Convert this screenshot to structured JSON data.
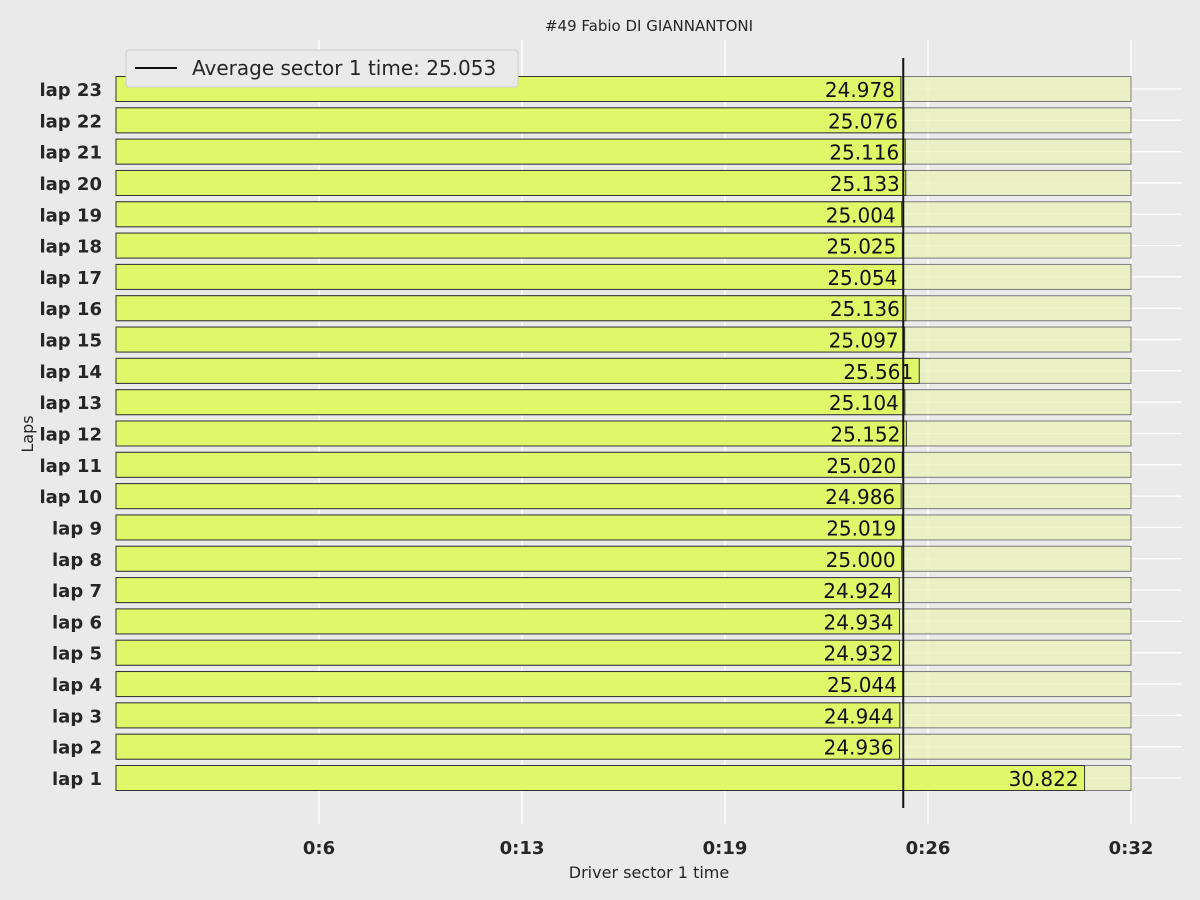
{
  "chart_data": {
    "type": "bar",
    "orientation": "horizontal",
    "title": "#49  Fabio DI GIANNANTONI",
    "xlabel": "Driver sector 1 time",
    "ylabel": "Laps",
    "xlim": [
      0,
      32.3
    ],
    "x_ticks": [
      {
        "value": 6.46,
        "label": "0:6"
      },
      {
        "value": 12.92,
        "label": "0:13"
      },
      {
        "value": 19.38,
        "label": "0:19"
      },
      {
        "value": 25.84,
        "label": "0:26"
      },
      {
        "value": 32.3,
        "label": "0:32"
      }
    ],
    "grid": true,
    "legend_position": "top-left",
    "colors": {
      "bar": "#e0f76a",
      "background_bar": "#eaf2b6",
      "edge": "#333333",
      "average_line": "#111111",
      "plot_bg": "#eaeaea",
      "grid": "#ffffff"
    },
    "background_bar_value": 32.3,
    "categories": [
      "lap 1",
      "lap 2",
      "lap 3",
      "lap 4",
      "lap 5",
      "lap 6",
      "lap 7",
      "lap 8",
      "lap 9",
      "lap 10",
      "lap 11",
      "lap 12",
      "lap 13",
      "lap 14",
      "lap 15",
      "lap 16",
      "lap 17",
      "lap 18",
      "lap 19",
      "lap 20",
      "lap 21",
      "lap 22",
      "lap 23"
    ],
    "values": [
      30.822,
      24.936,
      24.944,
      25.044,
      24.932,
      24.934,
      24.924,
      25.0,
      25.019,
      24.986,
      25.02,
      25.152,
      25.104,
      25.561,
      25.097,
      25.136,
      25.054,
      25.025,
      25.004,
      25.133,
      25.116,
      25.076,
      24.978
    ],
    "value_labels": [
      "30.822",
      "24.936",
      "24.944",
      "25.044",
      "24.932",
      "24.934",
      "24.924",
      "25.000",
      "25.019",
      "24.986",
      "25.020",
      "25.152",
      "25.104",
      "25.561",
      "25.097",
      "25.136",
      "25.054",
      "25.025",
      "25.004",
      "25.133",
      "25.116",
      "25.076",
      "24.978"
    ],
    "average": 25.053,
    "legend_label": "Average sector 1 time: 25.053"
  }
}
